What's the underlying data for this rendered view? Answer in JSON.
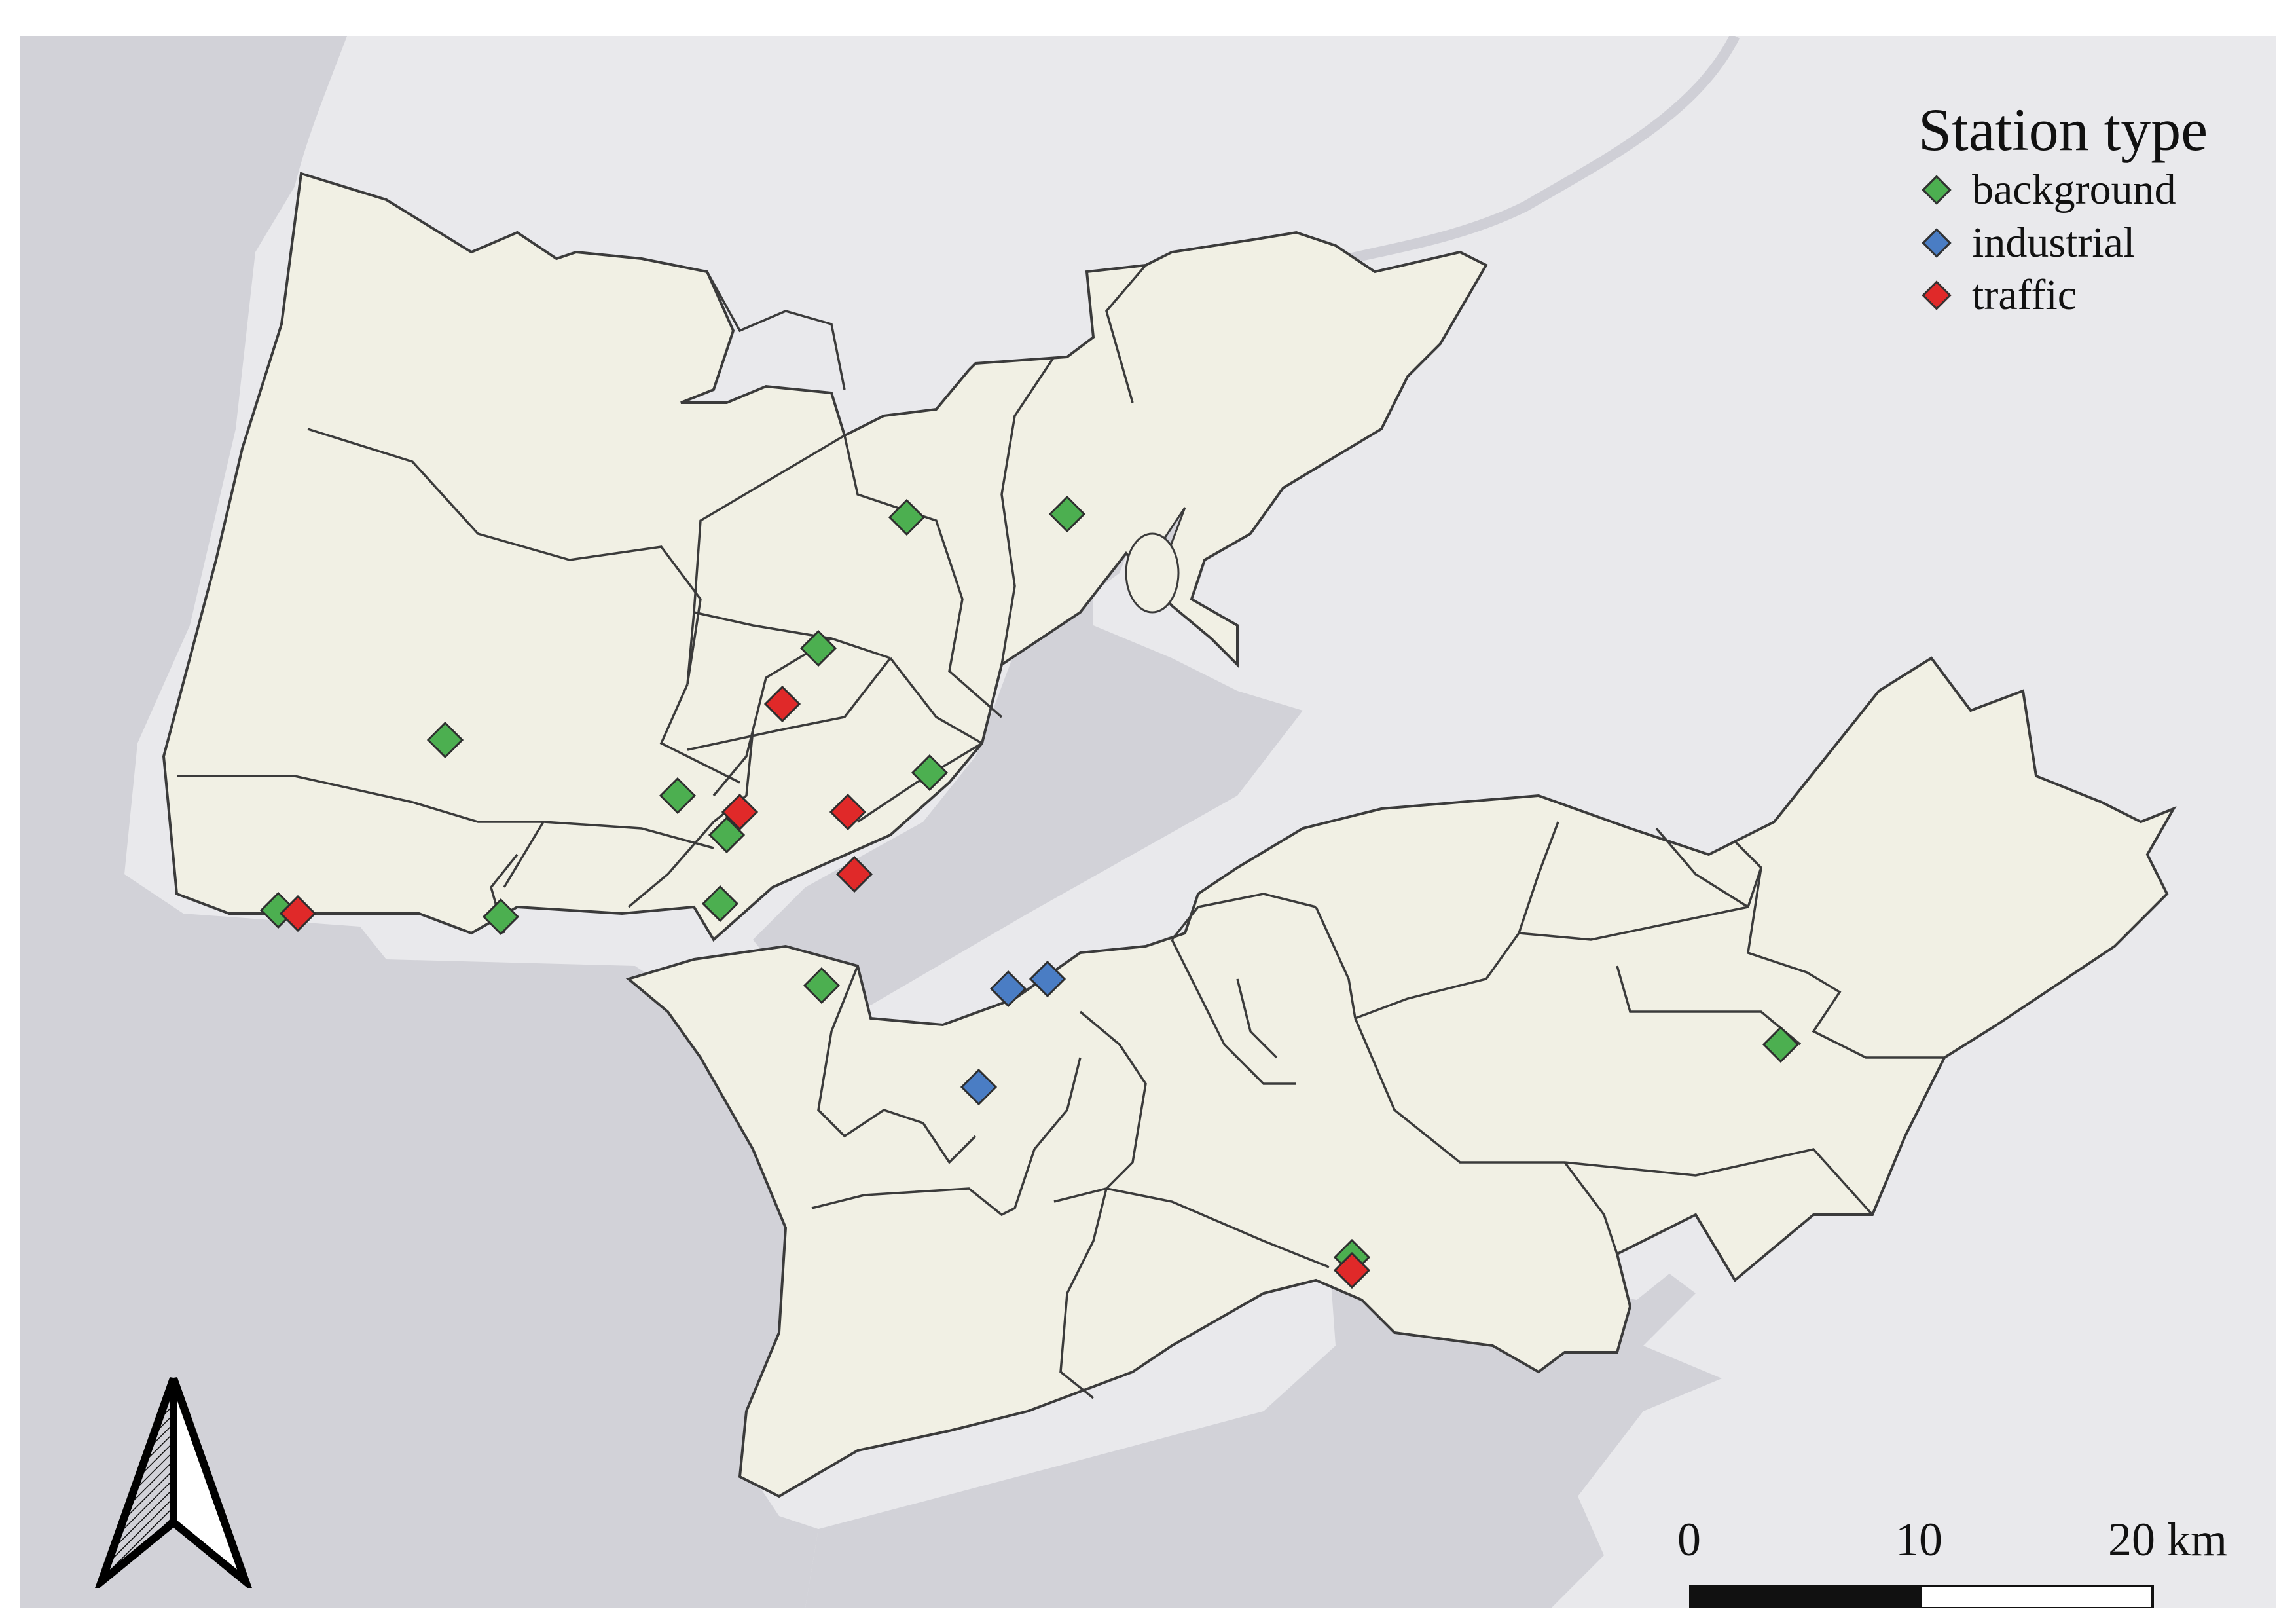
{
  "legend": {
    "title": "Station type",
    "items": [
      {
        "label": "background",
        "color": "#4caf50"
      },
      {
        "label": "industrial",
        "color": "#4a7dc4"
      },
      {
        "label": "traffic",
        "color": "#e02929"
      }
    ]
  },
  "scale_bar": {
    "labels": [
      "0",
      "10",
      "20 km"
    ]
  },
  "north_arrow": {
    "icon": "north-arrow-icon"
  },
  "colors": {
    "water": "#d2d2d8",
    "land_outside": "#e9e9ec",
    "study_area": "#f1f0e4",
    "boundary": "#3b3b3b",
    "background_station": "#4caf50",
    "industrial_station": "#4a7dc4",
    "traffic_station": "#e02929"
  }
}
